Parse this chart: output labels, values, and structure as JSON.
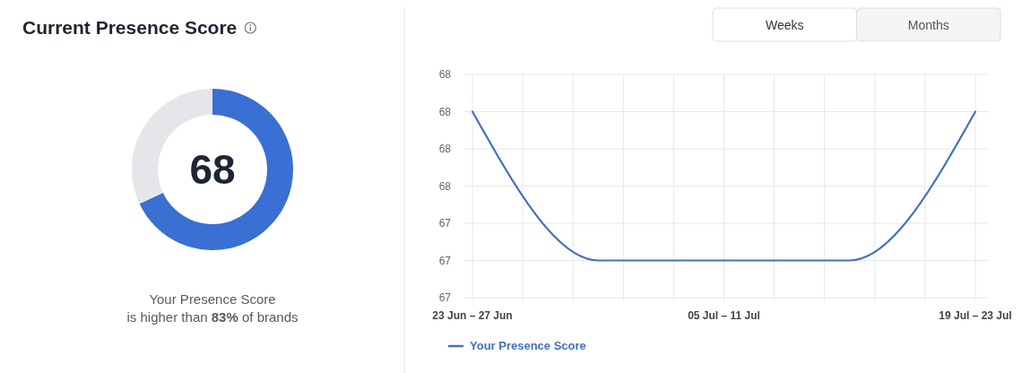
{
  "chart_data": [
    {
      "type": "donut",
      "title": "Current Presence Score",
      "categories": [
        null,
        null
      ],
      "values": [
        68,
        32
      ],
      "colors": [
        "#3a6fd3",
        "#e4e6e9"
      ],
      "annotations": [
        "68",
        "Your Presence Score",
        "is higher than 83% of brands"
      ]
    },
    {
      "type": "line",
      "categories": [
        "23 Jun – 27 Jun",
        null,
        "05 Jul – 11 Jul",
        null,
        "19 Jul – 23 Jul"
      ],
      "series": [
        {
          "name": "Your Presence Score",
          "color": "#4570b9",
          "values": [
            68,
            67.2,
            67.2,
            67.2,
            68
          ]
        }
      ],
      "ylim": [
        67,
        68.2
      ],
      "yticks": [
        {
          "value": 67,
          "label": "67"
        },
        {
          "value": 67.2,
          "label": "67"
        },
        {
          "value": 67.4,
          "label": "67"
        },
        {
          "value": 67.6,
          "label": "68"
        },
        {
          "value": 67.8,
          "label": "68"
        },
        {
          "value": 68,
          "label": "68"
        },
        {
          "value": 68.2,
          "label": "68"
        }
      ],
      "grid": true,
      "legend": "bottom left",
      "annotations": [
        "Weeks",
        "Months"
      ]
    }
  ]
}
